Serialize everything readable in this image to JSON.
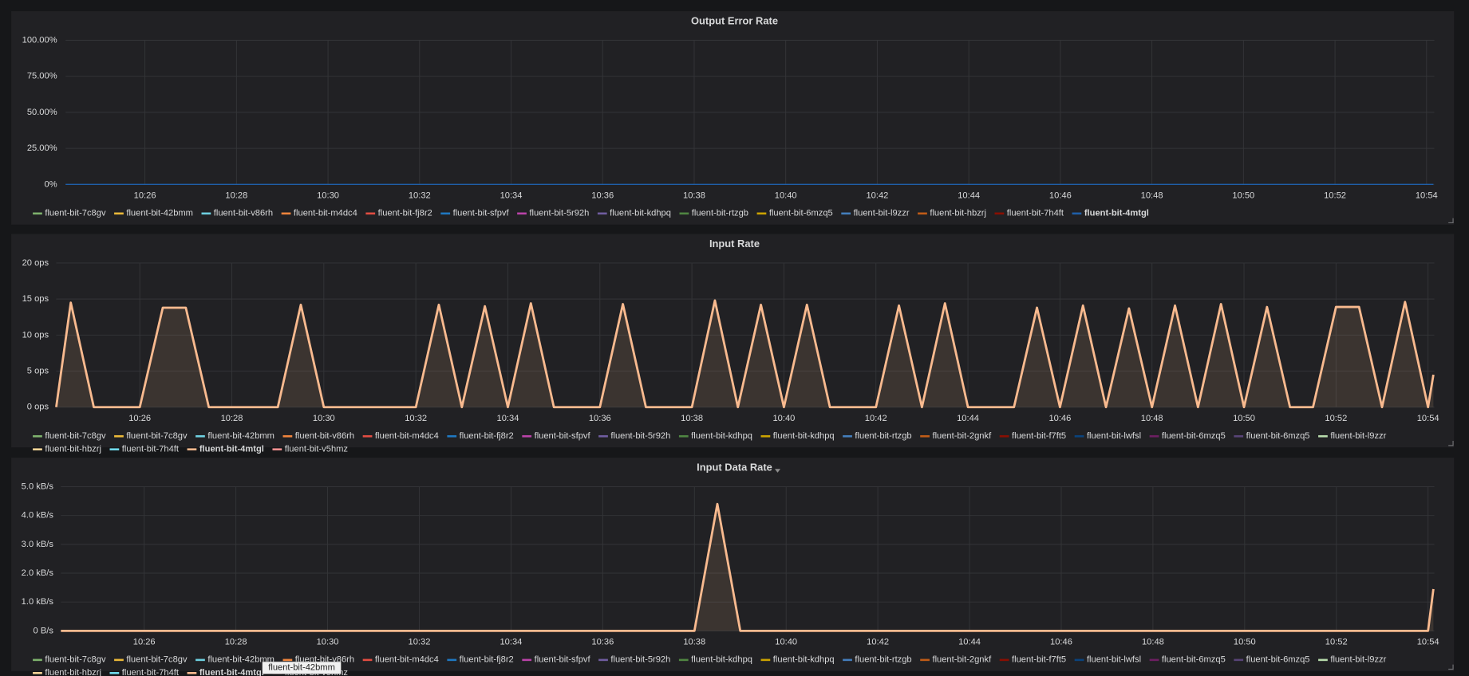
{
  "chart_data": [
    {
      "type": "line",
      "title": "Output Error Rate",
      "x": [
        "10:24:16",
        "10:54:09"
      ],
      "xlim": [
        "10:24:16",
        "10:54:09"
      ],
      "xticks": [
        "10:26",
        "10:28",
        "10:30",
        "10:32",
        "10:34",
        "10:36",
        "10:38",
        "10:40",
        "10:42",
        "10:44",
        "10:46",
        "10:48",
        "10:50",
        "10:52",
        "10:54"
      ],
      "ylim": [
        0,
        100
      ],
      "yticks": [
        {
          "value": 0,
          "label": "0%"
        },
        {
          "value": 25,
          "label": "25.00%"
        },
        {
          "value": 50,
          "label": "50.00%"
        },
        {
          "value": 75,
          "label": "75.00%"
        },
        {
          "value": 100,
          "label": "100.00%"
        }
      ],
      "grid": true,
      "legend": "bottom",
      "series": [
        {
          "name": "fluent-bit-7c8gv",
          "color": "#7eb26d"
        },
        {
          "name": "fluent-bit-42bmm",
          "color": "#eab839"
        },
        {
          "name": "fluent-bit-v86rh",
          "color": "#6ed0e0"
        },
        {
          "name": "fluent-bit-m4dc4",
          "color": "#ef843c"
        },
        {
          "name": "fluent-bit-fj8r2",
          "color": "#e24d42"
        },
        {
          "name": "fluent-bit-sfpvf",
          "color": "#1f78c1"
        },
        {
          "name": "fluent-bit-5r92h",
          "color": "#ba43a9"
        },
        {
          "name": "fluent-bit-kdhpq",
          "color": "#705da0"
        },
        {
          "name": "fluent-bit-rtzgb",
          "color": "#508642"
        },
        {
          "name": "fluent-bit-6mzq5",
          "color": "#cca300"
        },
        {
          "name": "fluent-bit-l9zzr",
          "color": "#447ebc"
        },
        {
          "name": "fluent-bit-hbzrj",
          "color": "#c15c17"
        },
        {
          "name": "fluent-bit-7h4ft",
          "color": "#890f02"
        },
        {
          "name": "fluent-bit-4mtgl",
          "color": "#1f5fa8",
          "values": [
            0,
            0
          ]
        }
      ]
    },
    {
      "type": "area",
      "title": "Input Rate",
      "x": [
        "10:24:11",
        "10:24:30",
        "10:25:00",
        "10:26:00",
        "10:26:30",
        "10:27:00",
        "10:27:30",
        "10:29:00",
        "10:29:30",
        "10:30:00",
        "10:32:00",
        "10:32:30",
        "10:33:00",
        "10:33:30",
        "10:34:00",
        "10:34:30",
        "10:35:00",
        "10:36:00",
        "10:36:30",
        "10:37:00",
        "10:38:00",
        "10:38:30",
        "10:39:00",
        "10:39:30",
        "10:40:00",
        "10:40:30",
        "10:41:00",
        "10:42:00",
        "10:42:30",
        "10:43:00",
        "10:43:30",
        "10:44:00",
        "10:45:00",
        "10:45:30",
        "10:46:00",
        "10:46:30",
        "10:47:00",
        "10:47:30",
        "10:48:00",
        "10:48:30",
        "10:49:00",
        "10:49:30",
        "10:50:00",
        "10:50:30",
        "10:51:00",
        "10:51:30",
        "10:52:00",
        "10:52:30",
        "10:53:00",
        "10:53:30",
        "10:54:00",
        "10:54:07"
      ],
      "xlim": [
        "10:24:11",
        "10:54:07"
      ],
      "xticks": [
        "10:26",
        "10:28",
        "10:30",
        "10:32",
        "10:34",
        "10:36",
        "10:38",
        "10:40",
        "10:42",
        "10:44",
        "10:46",
        "10:48",
        "10:50",
        "10:52",
        "10:54"
      ],
      "ylim": [
        0,
        20
      ],
      "yticks": [
        {
          "value": 0,
          "label": "0 ops"
        },
        {
          "value": 5,
          "label": "5 ops"
        },
        {
          "value": 10,
          "label": "10 ops"
        },
        {
          "value": 15,
          "label": "15 ops"
        },
        {
          "value": 20,
          "label": "20 ops"
        }
      ],
      "grid": true,
      "legend": "bottom",
      "series": [
        {
          "name": "fluent-bit-7c8gv",
          "color": "#7eb26d"
        },
        {
          "name": "fluent-bit-7c8gv",
          "color": "#eab839"
        },
        {
          "name": "fluent-bit-42bmm",
          "color": "#6ed0e0"
        },
        {
          "name": "fluent-bit-v86rh",
          "color": "#ef843c"
        },
        {
          "name": "fluent-bit-m4dc4",
          "color": "#e24d42"
        },
        {
          "name": "fluent-bit-fj8r2",
          "color": "#1f78c1"
        },
        {
          "name": "fluent-bit-sfpvf",
          "color": "#ba43a9"
        },
        {
          "name": "fluent-bit-5r92h",
          "color": "#705da0"
        },
        {
          "name": "fluent-bit-kdhpq",
          "color": "#508642"
        },
        {
          "name": "fluent-bit-kdhpq",
          "color": "#cca300"
        },
        {
          "name": "fluent-bit-rtzgb",
          "color": "#447ebc"
        },
        {
          "name": "fluent-bit-2gnkf",
          "color": "#c15c17"
        },
        {
          "name": "fluent-bit-f7ft5",
          "color": "#890f02"
        },
        {
          "name": "fluent-bit-lwfsl",
          "color": "#0a437c"
        },
        {
          "name": "fluent-bit-6mzq5",
          "color": "#6d1f62"
        },
        {
          "name": "fluent-bit-6mzq5",
          "color": "#584477"
        },
        {
          "name": "fluent-bit-l9zzr",
          "color": "#b7dbab"
        },
        {
          "name": "fluent-bit-hbzrj",
          "color": "#f4d598"
        },
        {
          "name": "fluent-bit-7h4ft",
          "color": "#70dbed"
        },
        {
          "name": "fluent-bit-4mtgl",
          "color": "#f9ba8f",
          "values": [
            0,
            14.5,
            0,
            0,
            13.8,
            13.8,
            0,
            0,
            14.2,
            0,
            0,
            14.2,
            0,
            14,
            0,
            14.4,
            0,
            0,
            14.3,
            0,
            0,
            14.8,
            0,
            14.2,
            0,
            14.2,
            0,
            0,
            14.1,
            0,
            14.4,
            0,
            0,
            13.8,
            0,
            14.1,
            0,
            13.7,
            0,
            14.1,
            0,
            14.3,
            0,
            13.9,
            0,
            0,
            13.9,
            13.9,
            0,
            14.6,
            0,
            4.5
          ]
        },
        {
          "name": "fluent-bit-v5hmz",
          "color": "#f29191"
        }
      ]
    },
    {
      "type": "area",
      "title": "Input Data Rate",
      "x": [
        "10:24:11",
        "10:38:00",
        "10:38:30",
        "10:39:00",
        "10:54:00",
        "10:54:07"
      ],
      "xlim": [
        "10:24:11",
        "10:54:07"
      ],
      "xticks": [
        "10:26",
        "10:28",
        "10:30",
        "10:32",
        "10:34",
        "10:36",
        "10:38",
        "10:40",
        "10:42",
        "10:44",
        "10:46",
        "10:48",
        "10:50",
        "10:52",
        "10:54"
      ],
      "ylim": [
        0,
        5
      ],
      "yticks": [
        {
          "value": 0,
          "label": "0 B/s"
        },
        {
          "value": 1,
          "label": "1.0 kB/s"
        },
        {
          "value": 2,
          "label": "2.0 kB/s"
        },
        {
          "value": 3,
          "label": "3.0 kB/s"
        },
        {
          "value": 4,
          "label": "4.0 kB/s"
        },
        {
          "value": 5,
          "label": "5.0 kB/s"
        }
      ],
      "grid": true,
      "legend": "bottom",
      "series": [
        {
          "name": "fluent-bit-7c8gv",
          "color": "#7eb26d"
        },
        {
          "name": "fluent-bit-7c8gv",
          "color": "#eab839"
        },
        {
          "name": "fluent-bit-42bmm",
          "color": "#6ed0e0"
        },
        {
          "name": "fluent-bit-v86rh",
          "color": "#ef843c"
        },
        {
          "name": "fluent-bit-m4dc4",
          "color": "#e24d42"
        },
        {
          "name": "fluent-bit-fj8r2",
          "color": "#1f78c1"
        },
        {
          "name": "fluent-bit-sfpvf",
          "color": "#ba43a9"
        },
        {
          "name": "fluent-bit-5r92h",
          "color": "#705da0"
        },
        {
          "name": "fluent-bit-kdhpq",
          "color": "#508642"
        },
        {
          "name": "fluent-bit-kdhpq",
          "color": "#cca300"
        },
        {
          "name": "fluent-bit-rtzgb",
          "color": "#447ebc"
        },
        {
          "name": "fluent-bit-2gnkf",
          "color": "#c15c17"
        },
        {
          "name": "fluent-bit-f7ft5",
          "color": "#890f02"
        },
        {
          "name": "fluent-bit-lwfsl",
          "color": "#0a437c"
        },
        {
          "name": "fluent-bit-6mzq5",
          "color": "#6d1f62"
        },
        {
          "name": "fluent-bit-6mzq5",
          "color": "#584477"
        },
        {
          "name": "fluent-bit-l9zzr",
          "color": "#b7dbab"
        },
        {
          "name": "fluent-bit-hbzrj",
          "color": "#f4d598"
        },
        {
          "name": "fluent-bit-7h4ft",
          "color": "#70dbed"
        },
        {
          "name": "fluent-bit-4mtgl",
          "color": "#f9ba8f",
          "values": [
            0,
            0,
            4.4,
            0,
            0,
            1.45
          ]
        },
        {
          "name": "fluent-bit-v5hmz",
          "color": "#f29191"
        }
      ]
    }
  ],
  "tooltip": "fluent-bit-42bmm"
}
